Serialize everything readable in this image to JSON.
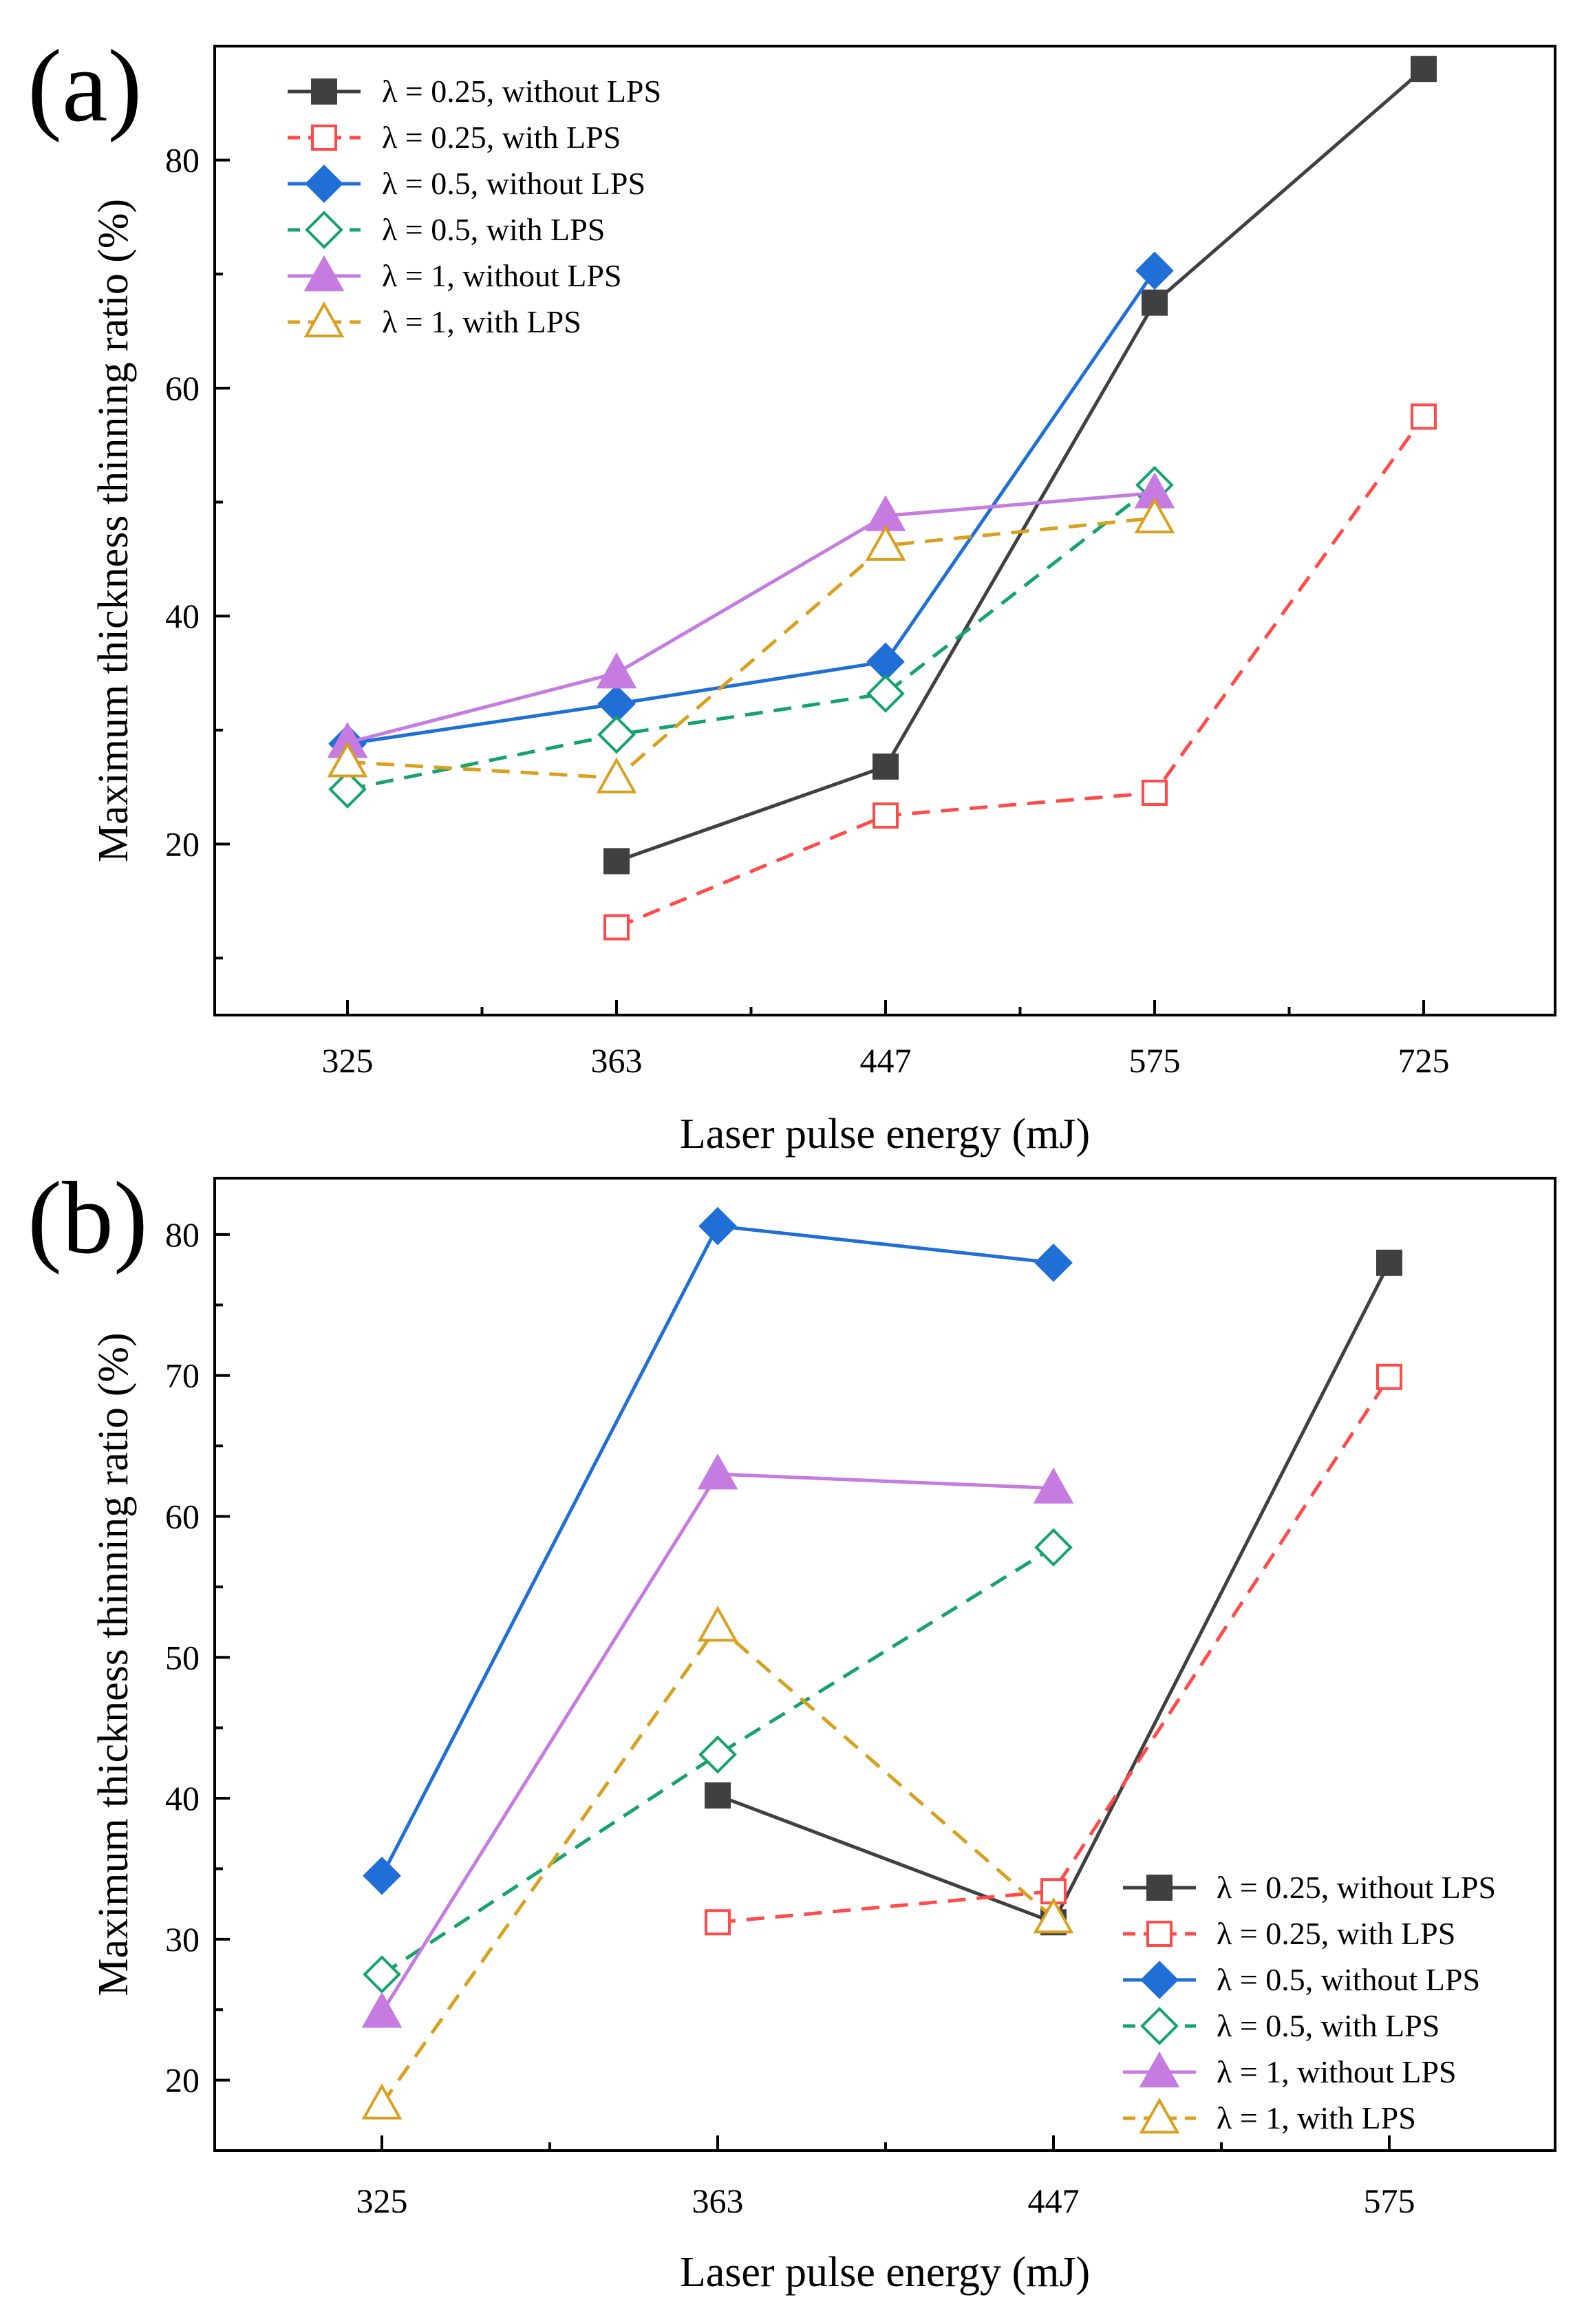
{
  "chart_data": [
    {
      "type": "line",
      "panel_label": "(a)",
      "xlabel": "Laser pulse energy (mJ)",
      "ylabel": "Maximum thickness thinning ratio (%)",
      "categories": [
        "325",
        "363",
        "447",
        "575",
        "725"
      ],
      "ylim": [
        5,
        90
      ],
      "yticks": [
        20,
        40,
        60,
        80
      ],
      "legend_position": "top-left",
      "series": [
        {
          "name": "λ = 0.25, without LPS",
          "color": "#404040",
          "dash": "solid",
          "marker": "square",
          "filled": true,
          "values": [
            null,
            18.5,
            26.8,
            67.5,
            88
          ]
        },
        {
          "name": "λ = 0.25, with LPS",
          "color": "#ff4a4a",
          "dash": "dashed",
          "marker": "square",
          "filled": false,
          "values": [
            null,
            12.7,
            22.5,
            24.5,
            57.5
          ]
        },
        {
          "name": "λ = 0.5, without LPS",
          "color": "#1f6fd6",
          "dash": "solid",
          "marker": "diamond",
          "filled": true,
          "values": [
            28.8,
            32.3,
            36,
            70.3,
            null
          ]
        },
        {
          "name": "λ = 0.5, with LPS",
          "color": "#14a36b",
          "dash": "dashed",
          "marker": "diamond",
          "filled": false,
          "values": [
            24.8,
            29.6,
            33.2,
            51.5,
            null
          ]
        },
        {
          "name": "λ = 1, without LPS",
          "color": "#c57be0",
          "dash": "solid",
          "marker": "triangle",
          "filled": true,
          "values": [
            28.9,
            35,
            48.8,
            50.8,
            null
          ]
        },
        {
          "name": "λ = 1, with LPS",
          "color": "#d9a01f",
          "dash": "dashed",
          "marker": "triangle",
          "filled": false,
          "values": [
            27.2,
            25.8,
            46.2,
            48.6,
            null
          ]
        }
      ]
    },
    {
      "type": "line",
      "panel_label": "(b)",
      "xlabel": "Laser pulse energy (mJ)",
      "ylabel": "Maximum thickness thinning ratio (%)",
      "categories": [
        "325",
        "363",
        "447",
        "575"
      ],
      "ylim": [
        15,
        84
      ],
      "yticks": [
        20,
        30,
        40,
        50,
        60,
        70,
        80
      ],
      "legend_position": "bottom-right",
      "series": [
        {
          "name": "λ = 0.25, without LPS",
          "color": "#404040",
          "dash": "solid",
          "marker": "square",
          "filled": true,
          "values": [
            null,
            40.2,
            31.2,
            78
          ]
        },
        {
          "name": "λ = 0.25, with LPS",
          "color": "#ff4a4a",
          "dash": "dashed",
          "marker": "square",
          "filled": false,
          "values": [
            null,
            31.2,
            33.4,
            69.9
          ]
        },
        {
          "name": "λ = 0.5, without LPS",
          "color": "#1f6fd6",
          "dash": "solid",
          "marker": "diamond",
          "filled": true,
          "values": [
            34.5,
            80.6,
            78,
            null
          ]
        },
        {
          "name": "λ = 0.5, with LPS",
          "color": "#14a36b",
          "dash": "dashed",
          "marker": "diamond",
          "filled": false,
          "values": [
            27.5,
            43.1,
            57.8,
            null
          ]
        },
        {
          "name": "λ = 1, without LPS",
          "color": "#c57be0",
          "dash": "solid",
          "marker": "triangle",
          "filled": true,
          "values": [
            24.8,
            63,
            62,
            null
          ]
        },
        {
          "name": "λ = 1, with LPS",
          "color": "#d9a01f",
          "dash": "dashed",
          "marker": "triangle",
          "filled": false,
          "values": [
            18.3,
            52.2,
            31.5,
            null
          ]
        }
      ]
    }
  ]
}
